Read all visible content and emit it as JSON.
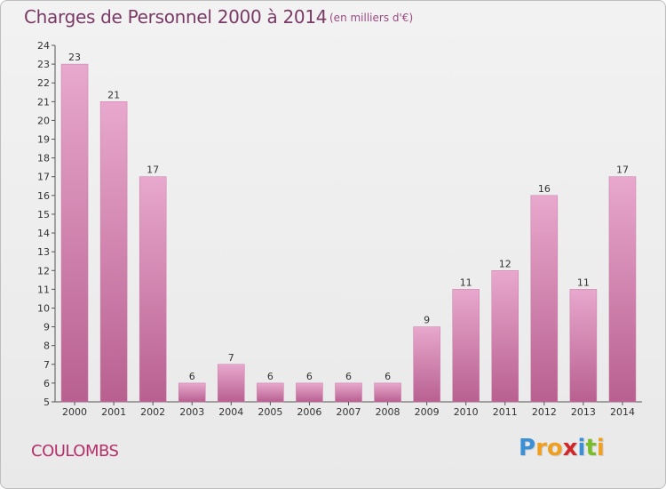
{
  "header": {
    "title": "Charges de Personnel 2000 à 2014",
    "unit": "(en milliers d'€)"
  },
  "footer": {
    "city": "COULOMBS",
    "brand": "Proxiti"
  },
  "colors": {
    "bar_top": "#e8a8cd",
    "bar_bottom": "#b86090",
    "title": "#7a3a66",
    "city": "#b5306a",
    "brand_letters": [
      "#3a8fd6",
      "#f0a020",
      "#f0a020",
      "#d02828",
      "#3a8fd6",
      "#7abd2a",
      "#f0a020"
    ]
  },
  "chart_data": {
    "type": "bar",
    "categories": [
      "2000",
      "2001",
      "2002",
      "2003",
      "2004",
      "2005",
      "2006",
      "2007",
      "2008",
      "2009",
      "2010",
      "2011",
      "2012",
      "2013",
      "2014"
    ],
    "values": [
      23,
      21,
      17,
      6,
      7,
      6,
      6,
      6,
      6,
      9,
      11,
      12,
      16,
      11,
      17
    ],
    "title": "Charges de Personnel 2000 à 2014",
    "xlabel": "",
    "ylabel": "",
    "ylim": [
      5,
      24
    ],
    "yticks": [
      5,
      6,
      7,
      8,
      9,
      10,
      11,
      12,
      13,
      14,
      15,
      16,
      17,
      18,
      19,
      20,
      21,
      22,
      23,
      24
    ],
    "grid": false,
    "data_labels": true
  }
}
